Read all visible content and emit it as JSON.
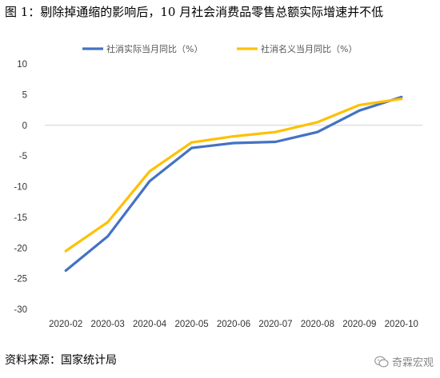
{
  "title": "图 1：剔除掉通缩的影响后，10 月社会消费品零售总额实际增速并不低",
  "source": "资料来源：国家统计局",
  "watermark": {
    "text": "奇霖宏观",
    "icon": "wechat-icon"
  },
  "chart_data": {
    "type": "line",
    "title": "",
    "xlabel": "",
    "ylabel": "",
    "categories": [
      "2020-02",
      "2020-03",
      "2020-04",
      "2020-05",
      "2020-06",
      "2020-07",
      "2020-08",
      "2020-09",
      "2020-10"
    ],
    "ylim": [
      -30,
      10
    ],
    "yticks": [
      10,
      5,
      0,
      -5,
      -10,
      -15,
      -20,
      -25,
      -30
    ],
    "grid": false,
    "legend": "top",
    "series": [
      {
        "name": "社消实际当月同比（%）",
        "color": "#4472C4",
        "values": [
          -23.7,
          -18.1,
          -9.1,
          -3.7,
          -2.9,
          -2.7,
          -1.1,
          2.4,
          4.6
        ]
      },
      {
        "name": "社消名义当月同比（%）",
        "color": "#FFC000",
        "values": [
          -20.5,
          -15.8,
          -7.5,
          -2.8,
          -1.8,
          -1.1,
          0.5,
          3.3,
          4.3
        ]
      }
    ]
  }
}
